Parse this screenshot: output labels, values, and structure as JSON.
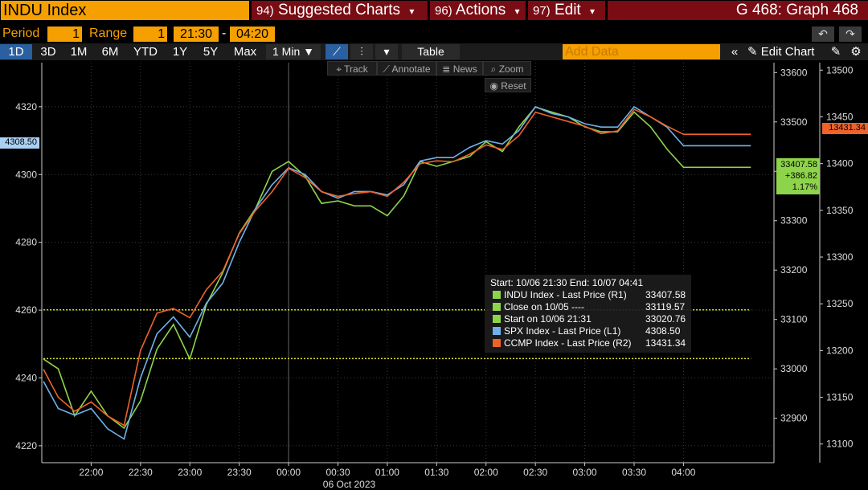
{
  "header": {
    "ticker": "INDU Index",
    "menu_suggested": {
      "num": "94)",
      "label": "Suggested Charts"
    },
    "menu_actions": {
      "num": "96)",
      "label": "Actions"
    },
    "menu_edit": {
      "num": "97)",
      "label": "Edit"
    },
    "graph_title": "G 468: Graph 468"
  },
  "period_bar": {
    "period_label": "Period",
    "period_value": "1",
    "range_label": "Range",
    "range_value": "1",
    "start_time": "21:30",
    "dash": "-",
    "end_time": "04:20"
  },
  "toolbar": {
    "ranges": [
      "1D",
      "3D",
      "1M",
      "6M",
      "YTD",
      "1Y",
      "5Y",
      "Max"
    ],
    "selected_range": "1D",
    "interval": "1 Min ▼",
    "table_label": "Table",
    "add_data_placeholder": "Add Data",
    "edit_chart_label": "Edit Chart"
  },
  "chart_tools": {
    "track": "Track",
    "annotate": "Annotate",
    "news": "News",
    "zoom": "Zoom",
    "reset": "Reset"
  },
  "legend": {
    "header": "Start: 10/06 21:30 End: 10/07 04:41",
    "rows": [
      {
        "name": "INDU Index - Last Price (R1)",
        "value": "33407.58",
        "color": "#8ed44a"
      },
      {
        "name": "Close on 10/05 ----",
        "value": "33119.57",
        "color": "#8ed44a"
      },
      {
        "name": "Start on 10/06 21:31",
        "value": "33020.76",
        "color": "#8ed44a"
      },
      {
        "name": "SPX Index - Last Price (L1)",
        "value": "4308.50",
        "color": "#6fb2ea"
      },
      {
        "name": "CCMP Index - Last Price (R2)",
        "value": "13431.34",
        "color": "#f0622a"
      }
    ]
  },
  "price_tags": {
    "spx": "4308.50",
    "ccmp": "13431.34",
    "indu_price": "33407.58",
    "indu_change": "+386.82",
    "indu_pct": "1.17%"
  },
  "chart_data": {
    "type": "line",
    "xlabel": "06 Oct 2023",
    "x_ticks": [
      "22:00",
      "22:30",
      "23:00",
      "23:30",
      "00:00",
      "00:30",
      "01:00",
      "01:30",
      "02:00",
      "02:30",
      "03:00",
      "03:30",
      "04:00"
    ],
    "left_axis": {
      "ticks": [
        4220,
        4240,
        4260,
        4280,
        4300,
        4320
      ],
      "ylim": [
        4215,
        4333
      ]
    },
    "right_axis_1": {
      "ticks": [
        32900,
        33000,
        33100,
        33200,
        33300,
        33400,
        33500,
        33600
      ],
      "ylim": [
        32810,
        33620
      ]
    },
    "right_axis_2": {
      "ticks": [
        13100,
        13150,
        13200,
        13250,
        13300,
        13350,
        13400,
        13450,
        13500
      ],
      "ylim": [
        13080,
        13508
      ]
    },
    "grid": true,
    "series": [
      {
        "name": "INDU Index - Last Price (R1)",
        "axis": "right1",
        "color": "#8ed44a",
        "x": [
          "21:31",
          "21:40",
          "21:50",
          "22:00",
          "22:10",
          "22:20",
          "22:30",
          "22:40",
          "22:50",
          "23:00",
          "23:10",
          "23:20",
          "23:30",
          "23:40",
          "23:50",
          "00:00",
          "00:10",
          "00:20",
          "00:30",
          "00:40",
          "00:50",
          "01:00",
          "01:10",
          "01:20",
          "01:30",
          "01:40",
          "01:50",
          "02:00",
          "02:10",
          "02:20",
          "02:30",
          "02:40",
          "02:50",
          "03:00",
          "03:10",
          "03:20",
          "03:30",
          "03:40",
          "03:50",
          "04:00",
          "04:10",
          "04:20",
          "04:30",
          "04:41"
        ],
        "values": [
          33020,
          33000,
          32905,
          32955,
          32905,
          32880,
          32935,
          33040,
          33090,
          33020,
          33130,
          33195,
          33275,
          33325,
          33400,
          33420,
          33390,
          33335,
          33340,
          33330,
          33330,
          33310,
          33350,
          33420,
          33410,
          33420,
          33430,
          33460,
          33440,
          33490,
          33530,
          33520,
          33510,
          33490,
          33480,
          33480,
          33520,
          33490,
          33445,
          33408,
          33408,
          33408,
          33408,
          33408
        ]
      },
      {
        "name": "Close on 10/05",
        "axis": "right1",
        "color": "#d4e020",
        "dashed": true,
        "x": [
          "21:31",
          "04:41"
        ],
        "values": [
          33119.57,
          33119.57
        ]
      },
      {
        "name": "Start on 10/06 21:31",
        "axis": "right1",
        "color": "#d4e020",
        "dashed": true,
        "x": [
          "21:31",
          "04:41"
        ],
        "values": [
          33020.76,
          33020.76
        ]
      },
      {
        "name": "SPX Index - Last Price (L1)",
        "axis": "left",
        "color": "#6fb2ea",
        "x": [
          "21:31",
          "21:40",
          "21:50",
          "22:00",
          "22:10",
          "22:20",
          "22:30",
          "22:40",
          "22:50",
          "23:00",
          "23:10",
          "23:20",
          "23:30",
          "23:40",
          "23:50",
          "00:00",
          "00:10",
          "00:20",
          "00:30",
          "00:40",
          "00:50",
          "01:00",
          "01:10",
          "01:20",
          "01:30",
          "01:40",
          "01:50",
          "02:00",
          "02:10",
          "02:20",
          "02:30",
          "02:40",
          "02:50",
          "03:00",
          "03:10",
          "03:20",
          "03:30",
          "03:40",
          "03:50",
          "04:00",
          "04:10",
          "04:20",
          "04:30",
          "04:41"
        ],
        "values": [
          4239,
          4231,
          4229,
          4231,
          4225,
          4222,
          4240,
          4253,
          4258,
          4252,
          4262,
          4268,
          4280,
          4290,
          4297,
          4302,
          4300,
          4295,
          4293,
          4295,
          4295,
          4294,
          4297,
          4304,
          4305,
          4305,
          4308,
          4310,
          4309,
          4313,
          4320,
          4318,
          4317,
          4315,
          4314,
          4314,
          4320,
          4317,
          4314,
          4308.5,
          4308.5,
          4308.5,
          4308.5,
          4308.5
        ]
      },
      {
        "name": "CCMP Index - Last Price (R2)",
        "axis": "right2",
        "color": "#f0622a",
        "x": [
          "21:31",
          "21:40",
          "21:50",
          "22:00",
          "22:10",
          "22:20",
          "22:30",
          "22:40",
          "22:50",
          "23:00",
          "23:10",
          "23:20",
          "23:30",
          "23:40",
          "23:50",
          "00:00",
          "00:10",
          "00:20",
          "00:30",
          "00:40",
          "00:50",
          "01:00",
          "01:10",
          "01:20",
          "01:30",
          "01:40",
          "01:50",
          "02:00",
          "02:10",
          "02:20",
          "02:30",
          "02:40",
          "02:50",
          "03:00",
          "03:10",
          "03:20",
          "03:30",
          "03:40",
          "03:50",
          "04:00",
          "04:10",
          "04:20",
          "04:30",
          "04:41"
        ],
        "values": [
          13180,
          13150,
          13135,
          13145,
          13130,
          13120,
          13200,
          13240,
          13245,
          13235,
          13265,
          13285,
          13325,
          13350,
          13370,
          13395,
          13385,
          13370,
          13365,
          13368,
          13370,
          13365,
          13380,
          13400,
          13403,
          13402,
          13410,
          13420,
          13415,
          13430,
          13455,
          13450,
          13445,
          13440,
          13432,
          13435,
          13458,
          13450,
          13440,
          13431.34,
          13431.34,
          13431.34,
          13431.34,
          13431.34
        ]
      }
    ]
  }
}
